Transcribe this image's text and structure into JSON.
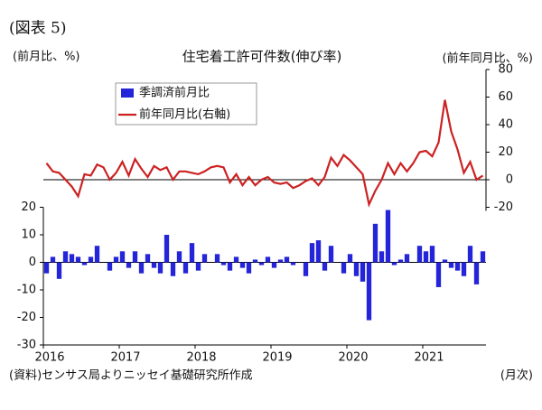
{
  "chart_data": {
    "type": "combo",
    "figure_label": "(図表 5)",
    "title": "住宅着工許可件数(伸び率)",
    "ylabel": "(前月比、%)",
    "y2label": "(前年同月比、%)",
    "xlabel": "(月次)",
    "source": "(資料)センサス局よりニッセイ基礎研究所作成",
    "categories": [
      "2016",
      null,
      null,
      null,
      null,
      null,
      null,
      null,
      null,
      null,
      null,
      null,
      "2017",
      null,
      null,
      null,
      null,
      null,
      null,
      null,
      null,
      null,
      null,
      null,
      "2018",
      null,
      null,
      null,
      null,
      null,
      null,
      null,
      null,
      null,
      null,
      null,
      "2019",
      null,
      null,
      null,
      null,
      null,
      null,
      null,
      null,
      null,
      null,
      null,
      "2020",
      null,
      null,
      null,
      null,
      null,
      null,
      null,
      null,
      null,
      null,
      null,
      "2021",
      null,
      null,
      null,
      null,
      null,
      null,
      null,
      null,
      null
    ],
    "series": [
      {
        "name": "季調済前月比",
        "type": "bar",
        "color": "#2424d8",
        "values": [
          -4,
          2,
          -6,
          4,
          3,
          2,
          -1,
          2,
          6,
          0,
          -3,
          2,
          4,
          -2,
          4,
          -4,
          3,
          -2,
          -4,
          10,
          -5,
          4,
          -4,
          7,
          -3,
          3,
          0,
          3,
          -1,
          -3,
          2,
          -2,
          -4,
          1,
          -1,
          2,
          -2,
          1,
          2,
          -1,
          0,
          -5,
          7,
          8,
          -3,
          6,
          0,
          -4,
          3,
          -5,
          -7,
          -21,
          14,
          4,
          19,
          -1,
          1,
          3,
          0,
          6,
          4,
          6,
          -9,
          1,
          -2,
          -3,
          -5,
          6,
          -8,
          4
        ]
      },
      {
        "name": "前年同月比(右軸)",
        "type": "line",
        "axis": "y2",
        "color": "#cc2222",
        "values": [
          12,
          6,
          5,
          0,
          -5,
          -12,
          4,
          3,
          11,
          9,
          0,
          5,
          13,
          3,
          15,
          8,
          2,
          10,
          7,
          9,
          0,
          6,
          6,
          5,
          4,
          6,
          9,
          10,
          9,
          -2,
          4,
          -4,
          2,
          -4,
          0,
          2,
          -2,
          -3,
          -2,
          -6,
          -4,
          -1,
          1,
          -4,
          2,
          16,
          10,
          18,
          14,
          9,
          4,
          -18,
          -8,
          0,
          12,
          4,
          12,
          6,
          12,
          20,
          21,
          17,
          27,
          58,
          35,
          22,
          5,
          13,
          0,
          3
        ]
      }
    ],
    "ylim": [
      -30,
      70
    ],
    "yticks": [
      -30,
      -20,
      -10,
      0,
      10,
      20
    ],
    "y2lim": [
      -120,
      80
    ],
    "y2ticks": [
      -20,
      0,
      20,
      40,
      60,
      80
    ],
    "legend": "upper left"
  }
}
